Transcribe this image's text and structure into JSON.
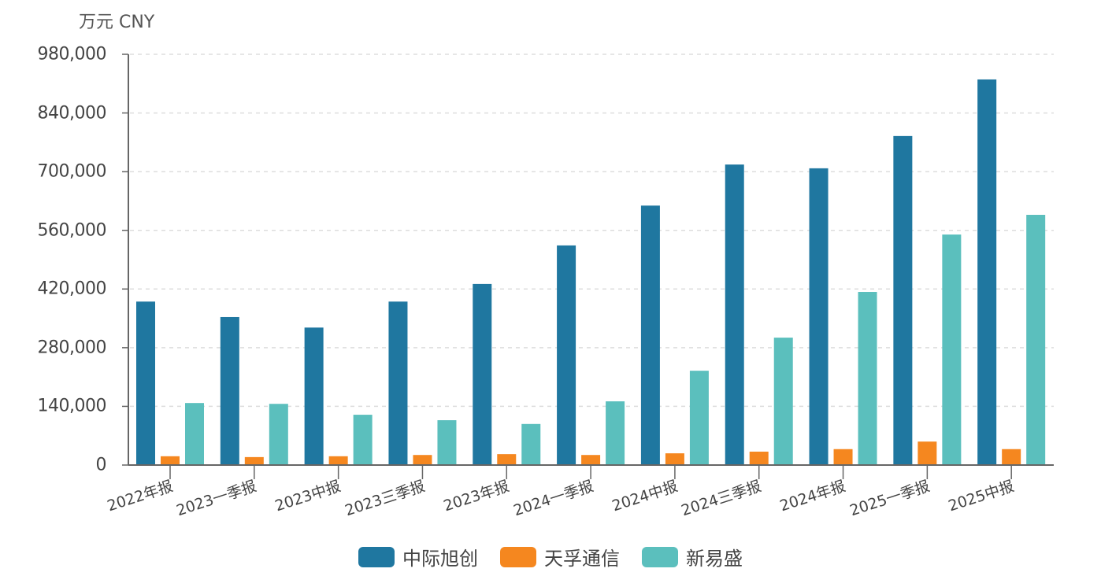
{
  "chart_data": {
    "type": "bar",
    "title": "",
    "unit_label": "万元 CNY",
    "xlabel": "",
    "ylabel": "万元 CNY",
    "ylim": [
      0,
      980000
    ],
    "yticks": [
      0,
      140000,
      280000,
      420000,
      560000,
      700000,
      840000,
      980000
    ],
    "ytick_labels": [
      "0",
      "140,000",
      "280,000",
      "420,000",
      "560,000",
      "700,000",
      "840,000",
      "980,000"
    ],
    "grid": {
      "y": true,
      "style": "dashed"
    },
    "legend_position": "bottom",
    "categories": [
      "2022年报",
      "2023一季报",
      "2023中报",
      "2023三季报",
      "2023年报",
      "2024一季报",
      "2024中报",
      "2024三季报",
      "2024年报",
      "2025一季报",
      "2025中报"
    ],
    "series": [
      {
        "name": "中际旭创",
        "color": "#1f77a0",
        "values": [
          390000,
          353000,
          328000,
          390000,
          432000,
          524000,
          619000,
          717000,
          708000,
          785000,
          920000
        ]
      },
      {
        "name": "天孚通信",
        "color": "#f5871f",
        "values": [
          21000,
          19000,
          21000,
          24000,
          26000,
          24000,
          28000,
          32000,
          38000,
          56000,
          38000
        ]
      },
      {
        "name": "新易盛",
        "color": "#5bbfbd",
        "values": [
          148000,
          146000,
          120000,
          107000,
          98000,
          152000,
          225000,
          304000,
          413000,
          550000,
          597000
        ]
      }
    ]
  },
  "colors": {
    "axis": "#666666",
    "grid": "#dddddd",
    "text": "#444444"
  }
}
